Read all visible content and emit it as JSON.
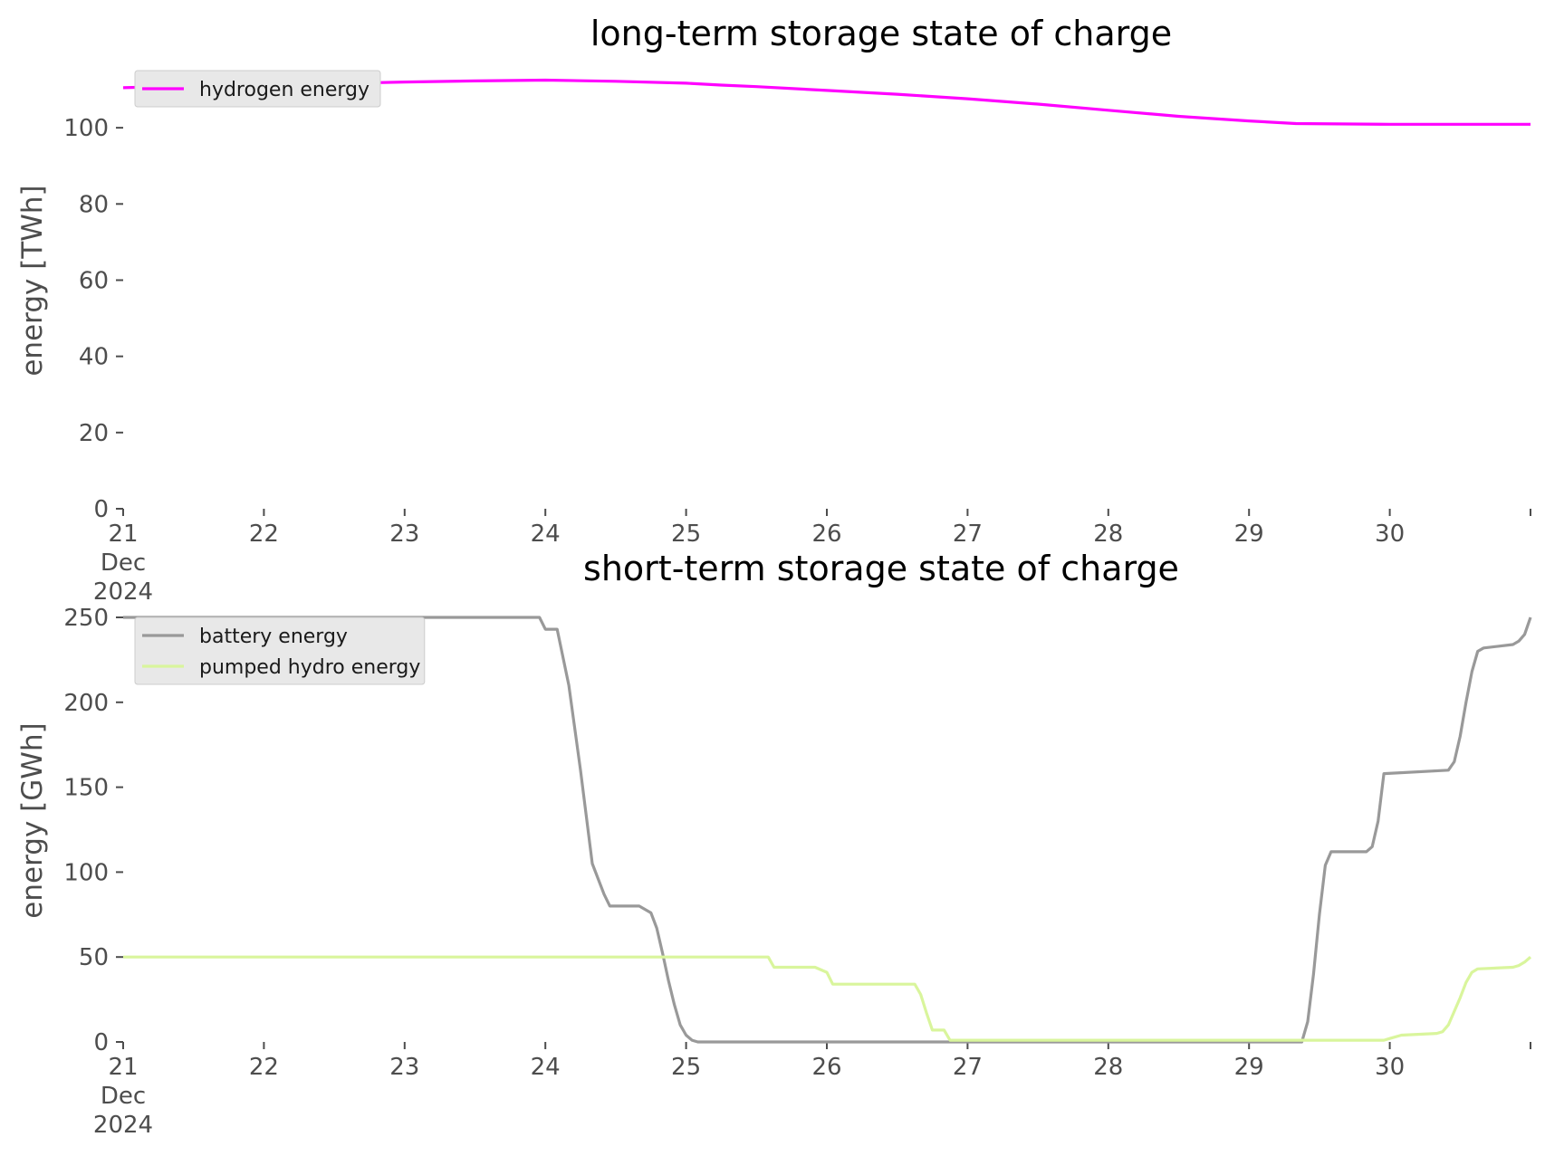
{
  "chart_data": [
    {
      "type": "line",
      "title": "long-term storage state of charge",
      "ylabel": "energy [TWh]",
      "xlabel": "",
      "xlim": [
        "2024-12-21",
        "2024-12-31"
      ],
      "ylim": [
        0,
        115
      ],
      "yticks": [
        "0",
        "20",
        "40",
        "60",
        "80",
        "100"
      ],
      "xticks": [
        "21\nDec\n2024",
        "22",
        "23",
        "24",
        "25",
        "26",
        "27",
        "28",
        "29",
        "30"
      ],
      "grid": false,
      "legend": "top-left",
      "series": [
        {
          "name": "hydrogen energy",
          "color": "#ff00ff",
          "points": [
            [
              "2024-12-21 00:00",
              110.5
            ],
            [
              "2024-12-21 12:00",
              111.0
            ],
            [
              "2024-12-22 00:00",
              111.2
            ],
            [
              "2024-12-22 12:00",
              111.6
            ],
            [
              "2024-12-23 00:00",
              112.0
            ],
            [
              "2024-12-23 12:00",
              112.3
            ],
            [
              "2024-12-24 00:00",
              112.5
            ],
            [
              "2024-12-24 12:00",
              112.2
            ],
            [
              "2024-12-25 00:00",
              111.7
            ],
            [
              "2024-12-25 06:00",
              111.2
            ],
            [
              "2024-12-25 12:00",
              110.8
            ],
            [
              "2024-12-26 00:00",
              109.8
            ],
            [
              "2024-12-26 12:00",
              108.8
            ],
            [
              "2024-12-27 00:00",
              107.6
            ],
            [
              "2024-12-27 12:00",
              106.2
            ],
            [
              "2024-12-28 00:00",
              104.6
            ],
            [
              "2024-12-28 12:00",
              103.0
            ],
            [
              "2024-12-29 00:00",
              101.8
            ],
            [
              "2024-12-29 08:00",
              101.1
            ],
            [
              "2024-12-30 00:00",
              100.9
            ],
            [
              "2024-12-31 00:00",
              100.9
            ]
          ]
        }
      ]
    },
    {
      "type": "line",
      "title": "short-term storage state of charge",
      "ylabel": "energy [GWh]",
      "xlabel": "",
      "xlim": [
        "2024-12-21",
        "2024-12-31"
      ],
      "ylim": [
        0,
        250
      ],
      "yticks": [
        "0",
        "50",
        "100",
        "150",
        "200",
        "250"
      ],
      "xticks": [
        "21\nDec\n2024",
        "22",
        "23",
        "24",
        "25",
        "26",
        "27",
        "28",
        "29",
        "30"
      ],
      "grid": false,
      "legend": "top-left",
      "series": [
        {
          "name": "battery energy",
          "color": "#999999",
          "points": [
            [
              "2024-12-21 00:00",
              250
            ],
            [
              "2024-12-23 23:00",
              250
            ],
            [
              "2024-12-24 00:00",
              243
            ],
            [
              "2024-12-24 02:00",
              243
            ],
            [
              "2024-12-24 04:00",
              210
            ],
            [
              "2024-12-24 06:00",
              160
            ],
            [
              "2024-12-24 08:00",
              105
            ],
            [
              "2024-12-24 10:00",
              87
            ],
            [
              "2024-12-24 11:00",
              80
            ],
            [
              "2024-12-24 14:00",
              80
            ],
            [
              "2024-12-24 16:00",
              80
            ],
            [
              "2024-12-24 18:00",
              76
            ],
            [
              "2024-12-24 19:00",
              67
            ],
            [
              "2024-12-24 20:00",
              52
            ],
            [
              "2024-12-24 21:00",
              36
            ],
            [
              "2024-12-24 22:00",
              22
            ],
            [
              "2024-12-24 23:00",
              10
            ],
            [
              "2024-12-25 00:00",
              4
            ],
            [
              "2024-12-25 01:00",
              1
            ],
            [
              "2024-12-25 02:00",
              0
            ],
            [
              "2024-12-29 09:00",
              0
            ],
            [
              "2024-12-29 10:00",
              12
            ],
            [
              "2024-12-29 11:00",
              40
            ],
            [
              "2024-12-29 12:00",
              75
            ],
            [
              "2024-12-29 13:00",
              104
            ],
            [
              "2024-12-29 14:00",
              112
            ],
            [
              "2024-12-29 20:00",
              112
            ],
            [
              "2024-12-29 21:00",
              115
            ],
            [
              "2024-12-29 22:00",
              130
            ],
            [
              "2024-12-29 23:00",
              158
            ],
            [
              "2024-12-30 10:00",
              160
            ],
            [
              "2024-12-30 11:00",
              165
            ],
            [
              "2024-12-30 12:00",
              180
            ],
            [
              "2024-12-30 13:00",
              200
            ],
            [
              "2024-12-30 14:00",
              218
            ],
            [
              "2024-12-30 15:00",
              230
            ],
            [
              "2024-12-30 16:00",
              232
            ],
            [
              "2024-12-30 21:00",
              234
            ],
            [
              "2024-12-30 22:00",
              236
            ],
            [
              "2024-12-30 23:00",
              240
            ],
            [
              "2024-12-31 00:00",
              250
            ]
          ]
        },
        {
          "name": "pumped hydro energy",
          "color": "#d9f59c",
          "points": [
            [
              "2024-12-21 00:00",
              50
            ],
            [
              "2024-12-25 14:00",
              50
            ],
            [
              "2024-12-25 15:00",
              44
            ],
            [
              "2024-12-25 22:00",
              44
            ],
            [
              "2024-12-26 00:00",
              41
            ],
            [
              "2024-12-26 01:00",
              34
            ],
            [
              "2024-12-26 15:00",
              34
            ],
            [
              "2024-12-26 16:00",
              28
            ],
            [
              "2024-12-26 17:00",
              17
            ],
            [
              "2024-12-26 18:00",
              7
            ],
            [
              "2024-12-26 20:00",
              7
            ],
            [
              "2024-12-26 21:00",
              1
            ],
            [
              "2024-12-29 23:00",
              1
            ],
            [
              "2024-12-30 00:00",
              2
            ],
            [
              "2024-12-30 02:00",
              4
            ],
            [
              "2024-12-30 08:00",
              5
            ],
            [
              "2024-12-30 09:00",
              6
            ],
            [
              "2024-12-30 10:00",
              10
            ],
            [
              "2024-12-30 11:00",
              18
            ],
            [
              "2024-12-30 12:00",
              26
            ],
            [
              "2024-12-30 13:00",
              35
            ],
            [
              "2024-12-30 14:00",
              41
            ],
            [
              "2024-12-30 15:00",
              43
            ],
            [
              "2024-12-30 21:00",
              44
            ],
            [
              "2024-12-30 22:00",
              45
            ],
            [
              "2024-12-30 23:00",
              47
            ],
            [
              "2024-12-31 00:00",
              50
            ]
          ]
        }
      ]
    }
  ]
}
